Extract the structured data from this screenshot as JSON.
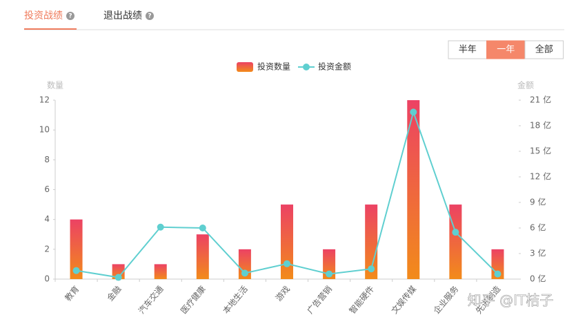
{
  "tabs": [
    "投资战绩",
    "退出战绩"
  ],
  "active_tab": 0,
  "range_buttons": [
    "半年",
    "一年",
    "全部"
  ],
  "active_range": 1,
  "watermark": "知乎 @IT桔子",
  "chart_data": {
    "type": "bar",
    "y_title": "数量",
    "y2_title": "金额",
    "categories": [
      "教育",
      "金融",
      "汽车交通",
      "医疗健康",
      "本地生活",
      "游戏",
      "广告营销",
      "智能硬件",
      "文娱传媒",
      "企业服务",
      "先进制造"
    ],
    "series": [
      {
        "name": "投资数量",
        "type": "bar",
        "color": [
          "#ec4264",
          "#f28b1a"
        ],
        "values": [
          4,
          1,
          1,
          3,
          2,
          5,
          2,
          5,
          12,
          5,
          2
        ]
      },
      {
        "name": "投资金额",
        "type": "line",
        "axis": "y2",
        "color": "#5fcfd0",
        "values": [
          1.0,
          0.2,
          6.1,
          6.0,
          0.7,
          1.8,
          0.6,
          1.2,
          19.6,
          5.5,
          0.6
        ]
      }
    ],
    "ylim": [
      0,
      12
    ],
    "yticks": [
      0,
      2,
      4,
      6,
      8,
      10,
      12
    ],
    "y2lim": [
      0,
      21
    ],
    "y2ticks": [
      {
        "value": 0,
        "label": "0 亿"
      },
      {
        "value": 3,
        "label": "3 亿"
      },
      {
        "value": 6,
        "label": "6 亿"
      },
      {
        "value": 9,
        "label": "9 亿"
      },
      {
        "value": 12,
        "label": "12 亿"
      },
      {
        "value": 15,
        "label": "15 亿"
      },
      {
        "value": 18,
        "label": "18 亿"
      },
      {
        "value": 21,
        "label": "21 亿"
      }
    ],
    "grid": false
  }
}
